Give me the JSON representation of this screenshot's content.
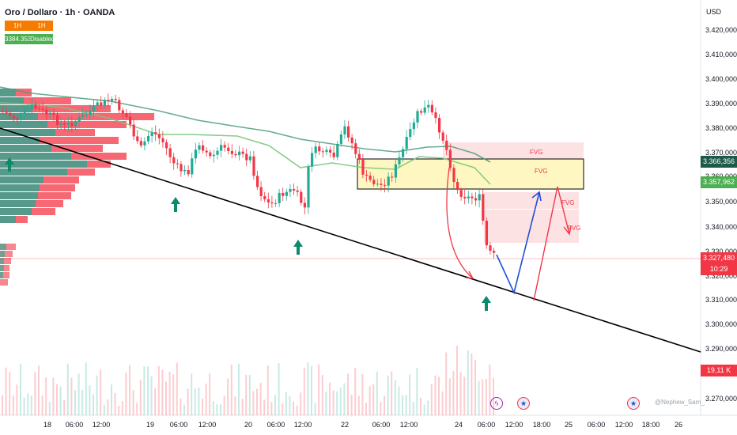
{
  "header": {
    "title": "Oro / Dollaro · 1h · OANDA",
    "tag_1h_a": "1H",
    "tag_1h_b": "1H",
    "tag_value": "3384.353",
    "tag_disabled": "Disabled"
  },
  "axis": {
    "currency": "USD",
    "price_labels": [
      "3.420,000",
      "3.410,000",
      "3.400,000",
      "3.390,000",
      "3.380,000",
      "3.370,000",
      "3.350,000",
      "3.340,000",
      "3.300,000",
      "3.290,000",
      "3.270,000"
    ],
    "partial_labels": [
      "3.360,000",
      "3.330,000",
      "3.320,000",
      "3.310,000"
    ],
    "time_labels": [
      "18",
      "06:00",
      "12:00",
      "19",
      "06:00",
      "12:00",
      "20",
      "06:00",
      "12:00",
      "22",
      "06:00",
      "12:00",
      "24",
      "06:00",
      "12:00",
      "18:00",
      "25",
      "06:00",
      "12:00",
      "18:00",
      "26"
    ]
  },
  "badges": {
    "price_upper": "3.366,356",
    "price_mid": "3.357,962",
    "current_price": "3.327,480",
    "countdown": "10:29",
    "volume": "19,11 K"
  },
  "fvg_labels": [
    "FVG",
    "FVG",
    "FVG",
    "FVG"
  ],
  "watermark": "@Nephew_Sam_",
  "colors": {
    "bull": "#22ab94",
    "bear": "#f23645",
    "trendline": "#000000",
    "zone": "#fff7c2",
    "blue_path": "#1e4fd8",
    "arrow_up": "#0b8a6d"
  }
}
